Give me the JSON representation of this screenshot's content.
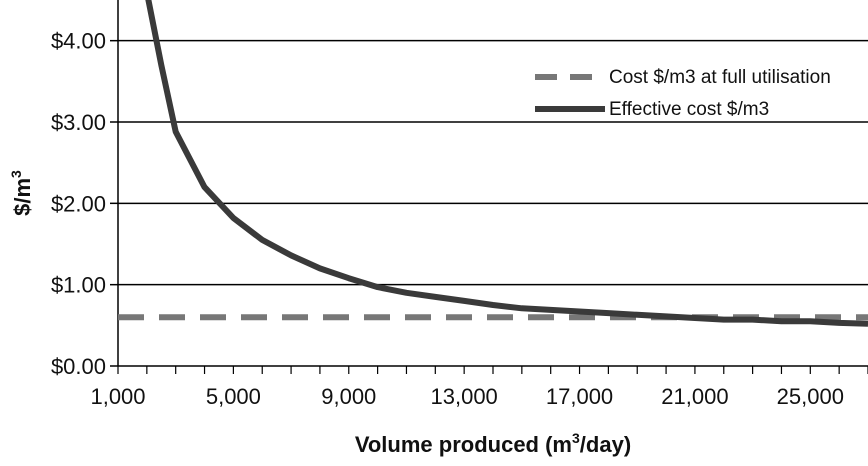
{
  "chart_data": {
    "type": "line",
    "title": "",
    "xlabel": {
      "prefix": "Volume produced  (m",
      "sup": "3",
      "suffix": "/day)"
    },
    "ylabel": {
      "base": "$/m",
      "sup": "3"
    },
    "xlim": [
      1000,
      27000
    ],
    "ylim": [
      0,
      4.5
    ],
    "x_ticks": [
      1000,
      5000,
      9000,
      13000,
      17000,
      21000,
      25000
    ],
    "x_tick_labels": [
      "1,000",
      "5,000",
      "9,000",
      "13,000",
      "17,000",
      "21,000",
      "25,000"
    ],
    "x_minor_step": 1000,
    "y_ticks": [
      0,
      1,
      2,
      3,
      4
    ],
    "y_tick_labels": [
      "$0.00",
      "$1.00",
      "$2.00",
      "$3.00",
      "$4.00"
    ],
    "grid": "horizontal",
    "legend_position": "top-right",
    "series": [
      {
        "name": "Cost $/m3 at full utilisation",
        "style": "dashed",
        "color": "#777777",
        "x": [
          1000,
          27000
        ],
        "y": [
          0.6,
          0.6
        ]
      },
      {
        "name": "Effective cost $/m3",
        "style": "solid",
        "color": "#3a3a3a",
        "x": [
          2000,
          2500,
          3000,
          4000,
          5000,
          6000,
          7000,
          8000,
          9000,
          10000,
          11000,
          12000,
          13000,
          14000,
          15000,
          16000,
          17000,
          18000,
          19000,
          20000,
          21000,
          22000,
          23000,
          24000,
          25000,
          26000,
          27000
        ],
        "y": [
          4.6,
          3.7,
          2.88,
          2.2,
          1.82,
          1.55,
          1.36,
          1.2,
          1.08,
          0.97,
          0.9,
          0.85,
          0.8,
          0.75,
          0.71,
          0.69,
          0.67,
          0.65,
          0.63,
          0.61,
          0.59,
          0.57,
          0.57,
          0.55,
          0.55,
          0.53,
          0.52
        ]
      }
    ]
  }
}
